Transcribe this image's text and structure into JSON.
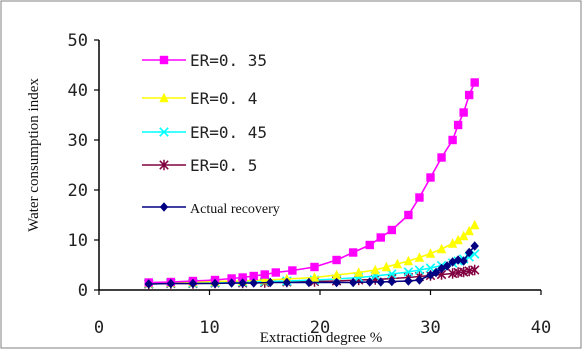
{
  "chart_data": {
    "type": "line",
    "xlabel": "Extraction degree %",
    "ylabel": "Water consumption index",
    "xlim": [
      0,
      40
    ],
    "ylim": [
      0,
      50
    ],
    "xticks": [
      0,
      10,
      20,
      30,
      40
    ],
    "yticks": [
      0,
      10,
      20,
      30,
      40,
      50
    ],
    "grid": false,
    "legend_position": "top-left",
    "series": [
      {
        "name": "ER=0.35",
        "display": "ER=0. 35",
        "color": "#ff00ff",
        "marker": "square",
        "x": [
          4.5,
          6.5,
          8.5,
          10.5,
          12,
          13,
          14,
          15,
          16,
          17.5,
          19.5,
          21.5,
          23,
          24.5,
          25.5,
          26.5,
          28,
          29,
          30,
          31,
          32,
          32.5,
          33,
          33.5,
          34
        ],
        "y": [
          1.5,
          1.6,
          1.8,
          2.0,
          2.3,
          2.5,
          2.8,
          3.1,
          3.5,
          3.9,
          4.6,
          6.0,
          7.5,
          9.0,
          10.5,
          12,
          15,
          18.5,
          22.5,
          26.5,
          30,
          33,
          35.5,
          39,
          41.5
        ]
      },
      {
        "name": "ER=0.4",
        "display": "ER=0. 4",
        "color": "#ffff00",
        "marker": "triangle",
        "x": [
          4.5,
          6.5,
          8.5,
          10.5,
          13,
          15,
          17,
          19.5,
          21.5,
          23.5,
          25,
          26,
          27,
          28,
          29,
          30,
          31,
          32,
          32.5,
          33,
          33.5,
          34
        ],
        "y": [
          1.4,
          1.5,
          1.6,
          1.7,
          1.8,
          2.0,
          2.2,
          2.5,
          3.0,
          3.5,
          4.0,
          4.6,
          5.2,
          5.8,
          6.5,
          7.3,
          8.2,
          9.3,
          10,
          10.8,
          11.8,
          13
        ]
      },
      {
        "name": "ER=0.45",
        "display": "ER=0. 45",
        "color": "#00ffff",
        "marker": "x",
        "x": [
          4.5,
          6.5,
          8.5,
          10.5,
          13,
          15,
          17,
          19.5,
          21.5,
          23.5,
          25,
          26.5,
          28,
          29,
          30,
          31,
          32,
          32.5,
          33,
          33.5,
          34
        ],
        "y": [
          1.3,
          1.4,
          1.4,
          1.5,
          1.6,
          1.7,
          1.8,
          2.0,
          2.2,
          2.5,
          2.8,
          3.2,
          3.6,
          4.0,
          4.4,
          4.9,
          5.4,
          5.8,
          6.2,
          6.6,
          7.2
        ]
      },
      {
        "name": "ER=0.5",
        "display": "ER=0. 5",
        "color": "#800040",
        "marker": "star",
        "x": [
          4.5,
          6.5,
          8.5,
          10.5,
          13,
          15,
          17,
          19.5,
          21.5,
          23.5,
          25,
          26.5,
          28,
          29,
          30,
          31,
          32,
          32.5,
          33,
          33.5,
          34
        ],
        "y": [
          1.2,
          1.3,
          1.3,
          1.4,
          1.4,
          1.5,
          1.6,
          1.7,
          1.8,
          2.0,
          2.1,
          2.3,
          2.5,
          2.7,
          2.9,
          3.1,
          3.3,
          3.5,
          3.6,
          3.8,
          4.0
        ]
      },
      {
        "name": "Actual recovery",
        "display": "Actual recovery",
        "color": "#000080",
        "marker": "diamond",
        "x": [
          4.5,
          6.5,
          8.5,
          10.5,
          12,
          13,
          14,
          15.5,
          17,
          19,
          21.5,
          23,
          24.5,
          25.5,
          26.5,
          28,
          29,
          30,
          30.5,
          31,
          31.5,
          32,
          32.5,
          33,
          33.5,
          34
        ],
        "y": [
          1.2,
          1.3,
          1.3,
          1.3,
          1.4,
          1.4,
          1.4,
          1.5,
          1.5,
          1.5,
          1.5,
          1.5,
          1.6,
          1.6,
          1.7,
          1.8,
          2.0,
          3.0,
          3.5,
          4.3,
          4.8,
          5.6,
          6.0,
          5.8,
          7.5,
          8.8
        ]
      }
    ]
  }
}
